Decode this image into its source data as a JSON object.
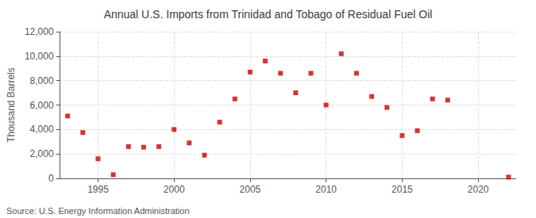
{
  "chart_data": {
    "type": "scatter",
    "title": "Annual U.S. Imports from Trinidad and Tobago of Residual Fuel Oil",
    "ylabel": "Thousand Barrels",
    "annotations": [
      "Source: U.S. Energy Information Administration"
    ],
    "x": [
      1993,
      1994,
      1995,
      1996,
      1997,
      1998,
      1999,
      2000,
      2001,
      2002,
      2003,
      2004,
      2005,
      2006,
      2007,
      2008,
      2009,
      2010,
      2011,
      2012,
      2013,
      2014,
      2015,
      2016,
      2017,
      2018,
      2022
    ],
    "values": [
      5100,
      3750,
      1600,
      300,
      2600,
      2550,
      2600,
      4000,
      2900,
      1900,
      4600,
      6500,
      8700,
      9600,
      8600,
      7000,
      8600,
      6000,
      10200,
      8600,
      6700,
      5800,
      3500,
      3900,
      6500,
      6400,
      100
    ],
    "color": "#cc0000",
    "marker": "square",
    "xlim": [
      1992.5,
      2022.5
    ],
    "ylim": [
      0,
      12000
    ],
    "xticks": [
      1995,
      2000,
      2005,
      2010,
      2015,
      2020
    ],
    "yticks": [
      0,
      {
        "value": 2000,
        "label": "2,000"
      },
      {
        "value": 4000,
        "label": "4,000"
      },
      {
        "value": 6000,
        "label": "6,000"
      },
      {
        "value": 8000,
        "label": "8,000"
      },
      {
        "value": 10000,
        "label": "10,000"
      },
      {
        "value": 12000,
        "label": "12,000"
      }
    ],
    "grid": true
  }
}
